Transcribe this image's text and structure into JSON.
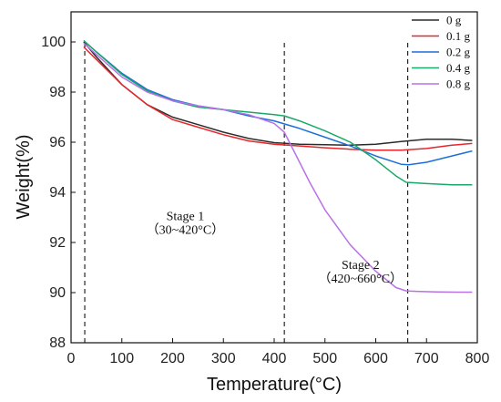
{
  "chart_data": {
    "type": "line",
    "xlabel": "Temperature(°C)",
    "ylabel": "Weight(%)",
    "xlim": [
      0,
      800
    ],
    "ylim": [
      88,
      101.2
    ],
    "x_ticks": [
      0,
      100,
      200,
      300,
      400,
      500,
      600,
      700,
      800
    ],
    "y_ticks": [
      88,
      90,
      92,
      94,
      96,
      98,
      100
    ],
    "legend_position": "top-right",
    "grid": false,
    "series": [
      {
        "name": "0 g",
        "color": "#2b2b2b",
        "x": [
          25,
          50,
          100,
          150,
          200,
          250,
          300,
          350,
          400,
          450,
          500,
          550,
          600,
          650,
          700,
          750,
          790
        ],
        "y": [
          100.0,
          99.4,
          98.3,
          97.5,
          97.0,
          96.7,
          96.4,
          96.15,
          95.98,
          95.92,
          95.9,
          95.88,
          95.92,
          96.03,
          96.12,
          96.12,
          96.07
        ]
      },
      {
        "name": "0.1 g",
        "color": "#e8262a",
        "x": [
          25,
          50,
          100,
          150,
          200,
          250,
          300,
          350,
          400,
          450,
          500,
          550,
          600,
          650,
          700,
          750,
          790
        ],
        "y": [
          99.8,
          99.3,
          98.3,
          97.5,
          96.9,
          96.6,
          96.3,
          96.05,
          95.92,
          95.85,
          95.78,
          95.72,
          95.68,
          95.68,
          95.75,
          95.88,
          95.95
        ]
      },
      {
        "name": "0.2 g",
        "color": "#1f6fd8",
        "x": [
          25,
          50,
          100,
          150,
          200,
          250,
          300,
          350,
          400,
          450,
          500,
          550,
          600,
          650,
          665,
          700,
          750,
          790
        ],
        "y": [
          100.05,
          99.6,
          98.75,
          98.1,
          97.7,
          97.45,
          97.3,
          97.05,
          96.85,
          96.55,
          96.2,
          95.85,
          95.45,
          95.12,
          95.1,
          95.2,
          95.45,
          95.65
        ]
      },
      {
        "name": "0.4 g",
        "color": "#1aa86a",
        "x": [
          25,
          50,
          100,
          150,
          200,
          250,
          300,
          350,
          400,
          420,
          450,
          500,
          550,
          600,
          640,
          660,
          700,
          750,
          790
        ],
        "y": [
          100.05,
          99.6,
          98.7,
          98.05,
          97.65,
          97.4,
          97.3,
          97.2,
          97.1,
          97.05,
          96.85,
          96.45,
          96.0,
          95.3,
          94.65,
          94.4,
          94.35,
          94.3,
          94.3
        ]
      },
      {
        "name": "0.8 g",
        "color": "#b972e6",
        "x": [
          25,
          50,
          100,
          150,
          200,
          250,
          300,
          350,
          400,
          420,
          440,
          470,
          500,
          550,
          600,
          640,
          660,
          680,
          720,
          760,
          790
        ],
        "y": [
          99.95,
          99.5,
          98.6,
          98.0,
          97.65,
          97.45,
          97.3,
          97.1,
          96.75,
          96.4,
          95.6,
          94.4,
          93.3,
          91.9,
          90.85,
          90.2,
          90.07,
          90.05,
          90.03,
          90.02,
          90.02
        ]
      }
    ],
    "vlines": [
      27,
      420,
      663
    ],
    "annotations": [
      {
        "text": "Stage 1",
        "x": 225,
        "y": 92.9
      },
      {
        "text": "（30~420°C）",
        "x": 225,
        "y": 92.35
      },
      {
        "text": "Stage 2",
        "x": 570,
        "y": 90.95
      },
      {
        "text": "（420~660°C）",
        "x": 570,
        "y": 90.4
      }
    ]
  }
}
